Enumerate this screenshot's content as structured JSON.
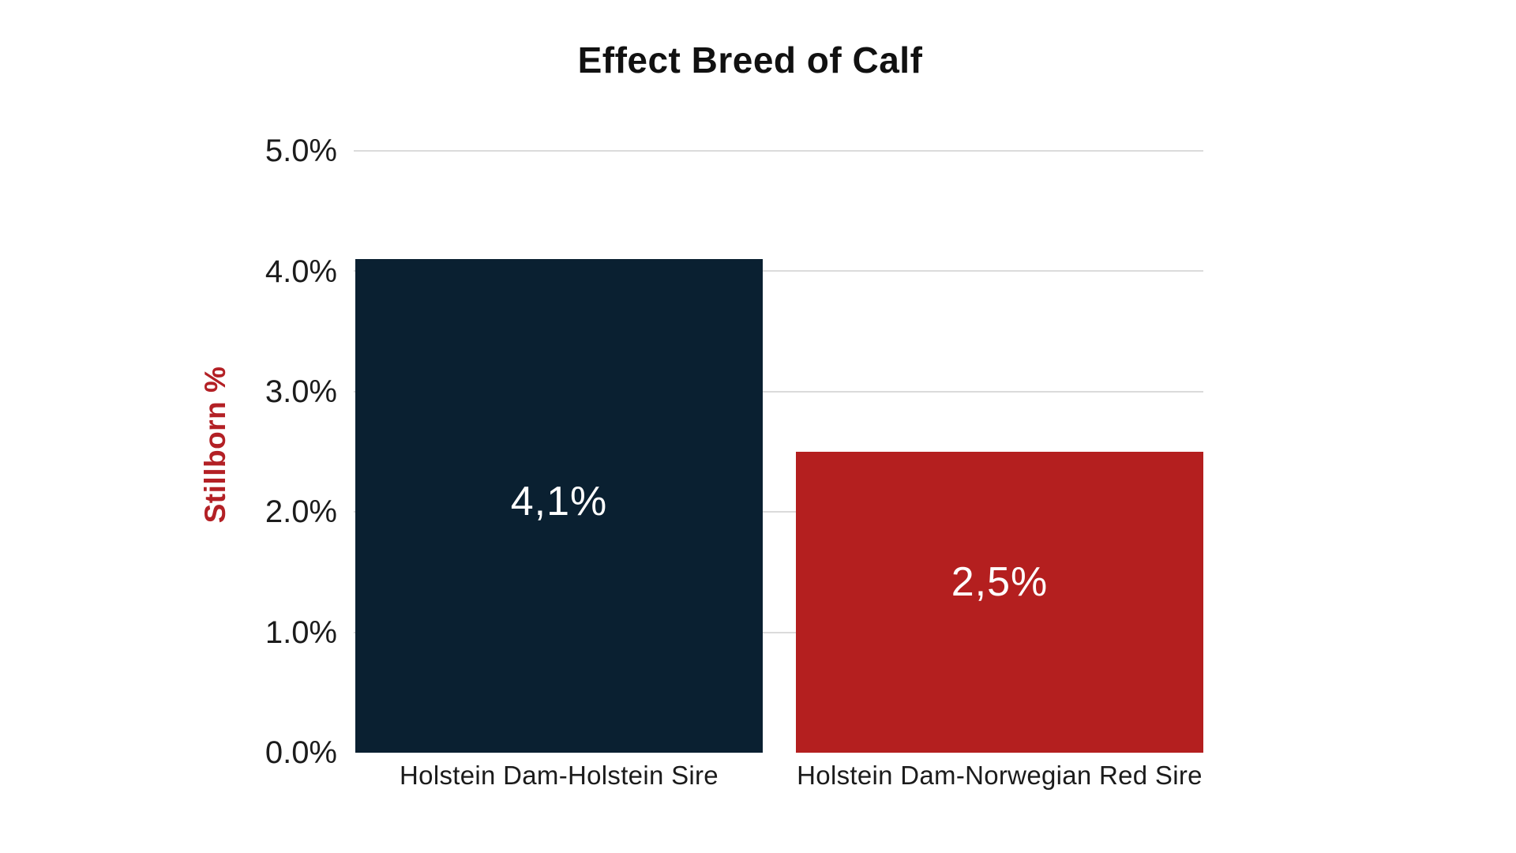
{
  "chart_data": {
    "type": "bar",
    "title": "Effect Breed of Calf",
    "ylabel": "Stillborn %",
    "xlabel": "",
    "categories": [
      "Holstein Dam-Holstein Sire",
      "Holstein Dam-Norwegian Red Sire"
    ],
    "values": [
      4.1,
      2.5
    ],
    "bar_labels": [
      "4,1%",
      "2,5%"
    ],
    "y_ticks": [
      "5.0%",
      "4.0%",
      "3.0%",
      "2.0%",
      "1.0%",
      "0.0%"
    ],
    "y_tick_values": [
      5.0,
      4.0,
      3.0,
      2.0,
      1.0,
      0.0
    ],
    "ylim": [
      0,
      5
    ],
    "grid": true,
    "legend_position": "none",
    "bar_colors": [
      "#0a2031",
      "#b41f1f"
    ],
    "ylabel_color": "#b32025",
    "grid_color": "#dbdbdb",
    "value_label_color": "#ffffff",
    "title_color": "#111111",
    "tick_label_color": "#1c1c1c"
  }
}
